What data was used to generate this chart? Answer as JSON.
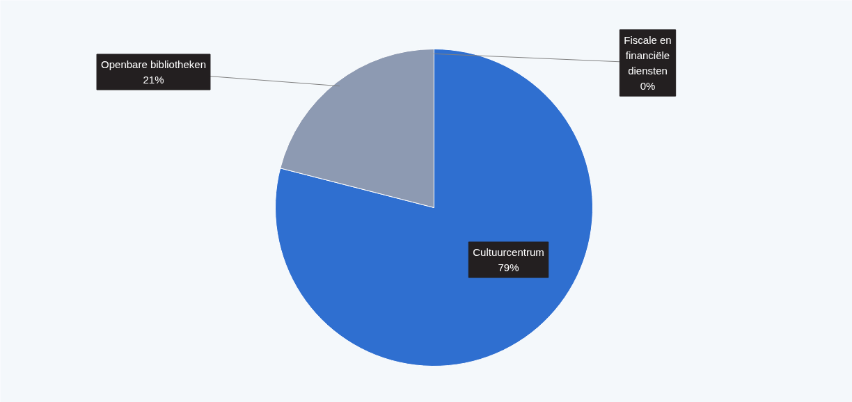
{
  "chart_data": {
    "type": "pie",
    "categories": [
      "Cultuurcentrum",
      "Openbare bibliotheken",
      "Fiscale en financiële diensten"
    ],
    "values": [
      79,
      21,
      0
    ],
    "colors": [
      "#2f6fd0",
      "#8d9ab2",
      "#a5a5a5"
    ],
    "value_labels": [
      "79%",
      "21%",
      "0%"
    ]
  }
}
